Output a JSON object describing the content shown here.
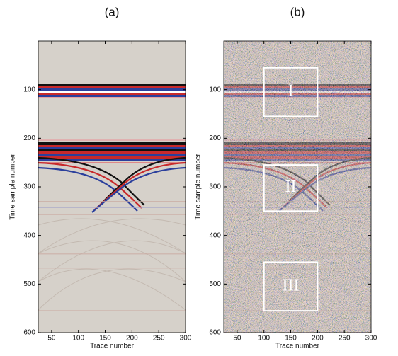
{
  "chart_data": [
    {
      "type": "image",
      "title": "(a)",
      "xlabel": "Trace number",
      "ylabel": "Time sample number",
      "xlim": [
        25,
        300
      ],
      "ylim": [
        0,
        600
      ],
      "xticks": [
        50,
        100,
        150,
        200,
        250,
        300
      ],
      "yticks": [
        100,
        200,
        300,
        400,
        500,
        600
      ],
      "noise": false,
      "annotations": []
    },
    {
      "type": "image",
      "title": "(b)",
      "xlabel": "Trace number",
      "ylabel": "Time sample number",
      "xlim": [
        25,
        300
      ],
      "ylim": [
        0,
        600
      ],
      "xticks": [
        50,
        100,
        150,
        200,
        250,
        300
      ],
      "yticks": [
        100,
        200,
        300,
        400,
        500,
        600
      ],
      "noise": true,
      "annotations": [
        {
          "text": "I",
          "x": [
            100,
            200
          ],
          "y": [
            55,
            155
          ]
        },
        {
          "text": "II",
          "x": [
            100,
            200
          ],
          "y": [
            255,
            350
          ]
        },
        {
          "text": "III",
          "x": [
            100,
            200
          ],
          "y": [
            455,
            555
          ]
        }
      ]
    }
  ]
}
